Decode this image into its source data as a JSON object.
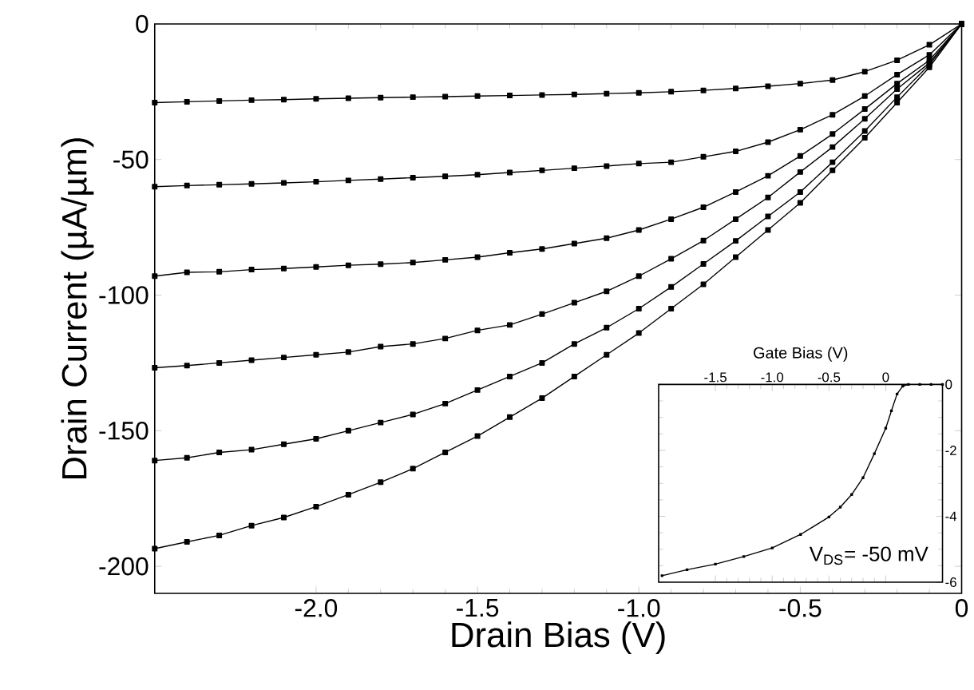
{
  "chart_data": [
    {
      "type": "line",
      "xlabel": "Drain Bias (V)",
      "ylabel": "Drain Current (µA/µm)",
      "xlim": [
        -2.5,
        0
      ],
      "ylim": [
        -210,
        0
      ],
      "xticks": [
        {
          "value": -2.0,
          "label": "-2.0"
        },
        {
          "value": -1.5,
          "label": "-1.5"
        },
        {
          "value": -1.0,
          "label": "-1.0"
        },
        {
          "value": -0.5,
          "label": "-0.5"
        },
        0
      ],
      "yticks": [
        0,
        -50,
        -100,
        -150,
        -200
      ],
      "marker": "square",
      "line_style": "solid",
      "x": [
        -2.5,
        -2.4,
        -2.3,
        -2.2,
        -2.1,
        -2.0,
        -1.9,
        -1.8,
        -1.7,
        -1.6,
        -1.5,
        -1.4,
        -1.3,
        -1.2,
        -1.1,
        -1.0,
        -0.9,
        -0.8,
        -0.7,
        -0.6,
        -0.5,
        -0.4,
        -0.3,
        -0.2,
        -0.1,
        0
      ],
      "series": [
        {
          "color": "#000000",
          "values": [
            -29,
            -28.7,
            -28.4,
            -28.1,
            -27.9,
            -27.6,
            -27.4,
            -27.2,
            -27,
            -26.8,
            -26.6,
            -26.4,
            -26.2,
            -26,
            -25.7,
            -25.4,
            -25,
            -24.5,
            -23.8,
            -23,
            -22,
            -20.7,
            -17.6,
            -13.4,
            -7.7,
            0
          ]
        },
        {
          "color": "#000000",
          "values": [
            -60,
            -59.6,
            -59.3,
            -59,
            -58.6,
            -58.2,
            -57.7,
            -57.2,
            -56.7,
            -56.2,
            -55.6,
            -54.8,
            -54,
            -53.2,
            -52.4,
            -51.5,
            -51,
            -49,
            -47,
            -43.6,
            -39,
            -33.5,
            -26.6,
            -18.7,
            -11.4,
            0
          ]
        },
        {
          "color": "#000000",
          "values": [
            -93,
            -91.6,
            -91.4,
            -90.6,
            -90.2,
            -89.6,
            -89,
            -88.6,
            -88,
            -87,
            -86,
            -84.4,
            -83,
            -81,
            -79,
            -76,
            -72,
            -67.6,
            -62,
            -56,
            -48.7,
            -40.6,
            -31.4,
            -22,
            -13.4,
            0
          ]
        },
        {
          "color": "#000000",
          "values": [
            -126.8,
            -126,
            -125,
            -124,
            -123,
            -122,
            -121,
            -119,
            -118,
            -116,
            -113,
            -111,
            -107,
            -102.8,
            -98.6,
            -93,
            -86.6,
            -79.9,
            -72,
            -64,
            -54.6,
            -45.4,
            -35,
            -24,
            -14.4,
            0
          ]
        },
        {
          "color": "#000000",
          "values": [
            -161,
            -160,
            -158,
            -157,
            -155,
            -153,
            -150,
            -147,
            -144,
            -140,
            -135,
            -130,
            -125,
            -118,
            -112,
            -105,
            -97,
            -88.5,
            -80,
            -71,
            -62,
            -51,
            -39.5,
            -27,
            -15,
            0
          ]
        },
        {
          "color": "#000000",
          "values": [
            -193.5,
            -191,
            -188.6,
            -185,
            -182,
            -178,
            -173.6,
            -169,
            -164,
            -158,
            -152,
            -145,
            -138,
            -130,
            -122,
            -114,
            -105,
            -96,
            -86,
            -76,
            -66,
            -54,
            -42,
            -29,
            -16,
            0
          ]
        }
      ]
    },
    {
      "type": "line",
      "xlabel": "Gate Bias (V)",
      "xlim": [
        -2.0,
        0.5
      ],
      "ylim": [
        -6,
        0
      ],
      "xticks": [
        {
          "value": -1.5,
          "label": "-1.5"
        },
        {
          "value": -1.0,
          "label": "-1.0"
        },
        {
          "value": -0.5,
          "label": "-0.5"
        },
        0
      ],
      "yticks": [
        0,
        -2,
        -4,
        -6
      ],
      "marker": "square",
      "line_style": "solid",
      "annotations": [
        "V$_{DS}$= -50 mV"
      ],
      "x": [
        -1.97,
        -1.75,
        -1.5,
        -1.25,
        -1.0,
        -0.75,
        -0.5,
        -0.4,
        -0.3,
        -0.2,
        -0.1,
        0,
        0.05,
        0.1,
        0.15,
        0.2,
        0.3,
        0.4,
        0.5
      ],
      "series": [
        {
          "color": "#000000",
          "values": [
            -5.8,
            -5.62,
            -5.45,
            -5.22,
            -4.96,
            -4.55,
            -4.02,
            -3.72,
            -3.34,
            -2.83,
            -2.1,
            -1.33,
            -0.8,
            -0.29,
            -0.05,
            0,
            0,
            0,
            0
          ]
        }
      ]
    }
  ]
}
